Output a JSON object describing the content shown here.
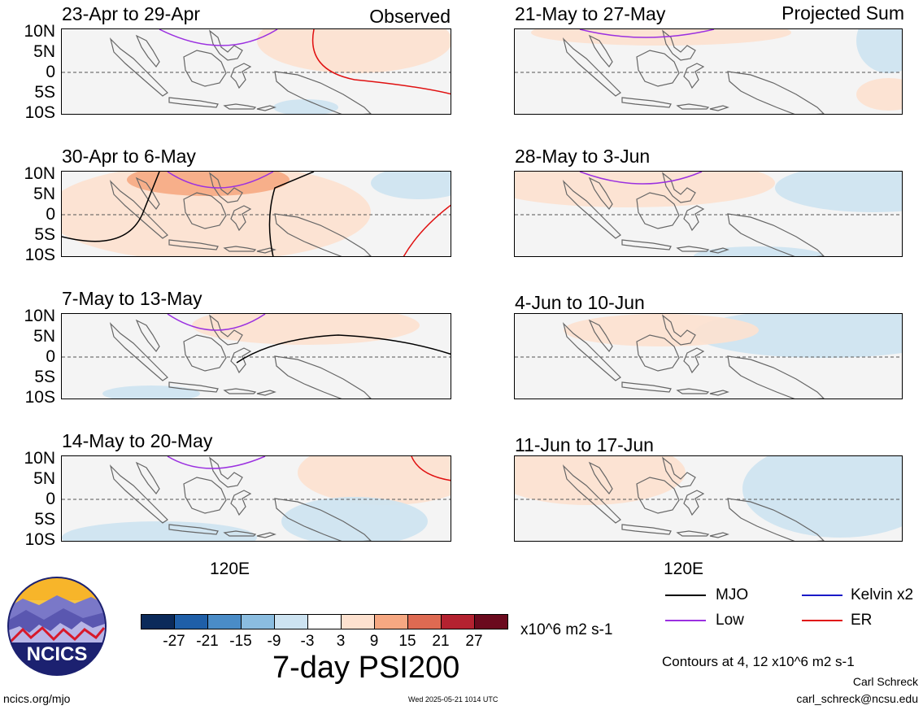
{
  "header": {
    "observed_label": "Observed",
    "projected_label": "Projected Sum"
  },
  "panels_left": [
    {
      "title": "23-Apr to 29-Apr"
    },
    {
      "title": "30-Apr to 6-May"
    },
    {
      "title": "7-May to 13-May"
    },
    {
      "title": "14-May to 20-May"
    }
  ],
  "panels_right": [
    {
      "title": "21-May to 27-May"
    },
    {
      "title": "28-May to 3-Jun"
    },
    {
      "title": "4-Jun to 10-Jun"
    },
    {
      "title": "11-Jun to 17-Jun"
    }
  ],
  "lat_labels": [
    "10N",
    "5N",
    "0",
    "5S",
    "10S"
  ],
  "lon_label": "120E",
  "colorbar": {
    "colors": [
      "#0b2a5a",
      "#1f5fa8",
      "#4a8cc7",
      "#8bbde0",
      "#cde3f1",
      "#ffffff",
      "#fde1cf",
      "#f6a882",
      "#de6a52",
      "#b42230",
      "#6b0a1e"
    ],
    "ticks": [
      "-27",
      "-21",
      "-15",
      "-9",
      "-3",
      "3",
      "9",
      "15",
      "21",
      "27"
    ],
    "units": "x10^6 m2 s-1",
    "title": "7-day PSI200"
  },
  "legend": [
    {
      "name": "MJO",
      "color": "#000000"
    },
    {
      "name": "Kelvin x2",
      "color": "#1a1ac8"
    },
    {
      "name": "Low",
      "color": "#9b30e0"
    },
    {
      "name": "ER",
      "color": "#e01010"
    }
  ],
  "footer": {
    "contours": "Contours at 4, 12 x10^6 m2 s-1",
    "author": "Carl Schreck",
    "email": "carl_schreck@ncsu.edu",
    "url": "ncics.org/mjo",
    "timestamp": "Wed 2025-05-21 1014 UTC",
    "logo_text": "NCICS"
  }
}
